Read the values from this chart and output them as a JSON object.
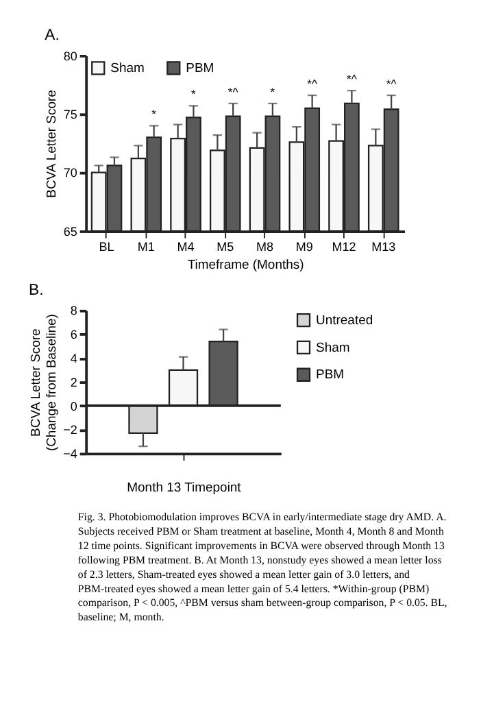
{
  "chart_data": [
    {
      "type": "bar",
      "title": "A.",
      "xlabel": "Timeframe (Months)",
      "ylabel": "BCVA Letter Score",
      "categories": [
        "BL",
        "M1",
        "M4",
        "M5",
        "M8",
        "M9",
        "M12",
        "M13"
      ],
      "series": [
        {
          "name": "Sham",
          "color": "#f7f7f7",
          "values": [
            70.0,
            71.2,
            72.9,
            71.9,
            72.1,
            72.6,
            72.7,
            72.3
          ],
          "errors": [
            [
              70.0,
              70.6
            ],
            [
              71.2,
              72.3
            ],
            [
              72.9,
              74.1
            ],
            [
              71.9,
              73.2
            ],
            [
              72.1,
              73.4
            ],
            [
              72.6,
              73.9
            ],
            [
              72.7,
              74.1
            ],
            [
              72.3,
              73.7
            ]
          ]
        },
        {
          "name": "PBM",
          "color": "#5a5a5a",
          "values": [
            70.6,
            73.0,
            74.7,
            74.8,
            74.8,
            75.5,
            75.9,
            75.4
          ],
          "errors": [
            [
              70.6,
              71.3
            ],
            [
              73.0,
              74.0
            ],
            [
              74.7,
              75.7
            ],
            [
              74.8,
              75.9
            ],
            [
              74.8,
              75.9
            ],
            [
              75.5,
              76.6
            ],
            [
              75.9,
              77.0
            ],
            [
              75.4,
              76.6
            ]
          ],
          "value_labels": [
            null,
            "*",
            "*",
            "*^",
            "*",
            "*^",
            "*^",
            "*^"
          ]
        }
      ],
      "ylim": [
        65,
        80
      ],
      "yticks": [
        65,
        70,
        75,
        80
      ],
      "grid": false,
      "legend": "top left"
    },
    {
      "type": "bar",
      "title": "B.",
      "xlabel": "Month 13 Timepoint",
      "ylabel": "BCVA Letter Score (Change from Baseline)",
      "categories": [
        null
      ],
      "series": [
        {
          "name": "Untreated",
          "color": "#d4d4d4",
          "values": [
            -2.3
          ],
          "errors": [
            [
              -3.4,
              -2.3
            ]
          ]
        },
        {
          "name": "Sham",
          "color": "#f7f7f7",
          "values": [
            3.0
          ],
          "errors": [
            [
              3.0,
              4.1
            ]
          ]
        },
        {
          "name": "PBM",
          "color": "#5a5a5a",
          "values": [
            5.4
          ],
          "errors": [
            [
              5.4,
              6.4
            ]
          ]
        }
      ],
      "ylim": [
        -4,
        8
      ],
      "yticks": [
        -4,
        -2,
        0,
        2,
        4,
        6,
        8
      ],
      "grid": false,
      "legend": "right",
      "ref_lines": [
        {
          "axis": "y",
          "value": 0
        }
      ],
      "annotations": [
        "Fig. 3. Photobiomodulation improves BCVA in early/intermediate stage dry AMD. A. Subjects received PBM or Sham treatment at baseline, Month 4, Month 8 and Month 12 time points. Significant improvements in BCVA were observed through Month 13 following PBM treatment. B. At Month 13, nonstudy eyes showed a mean letter loss of 2.3 letters, Sham-treated eyes showed a mean letter gain of 3.0 letters, and PBM-treated eyes showed a mean letter gain of 5.4 letters. *Within-group (PBM) comparison, P < 0.005, ^PBM versus sham between-group comparison, P < 0.05. BL, baseline; M, month."
      ]
    }
  ]
}
